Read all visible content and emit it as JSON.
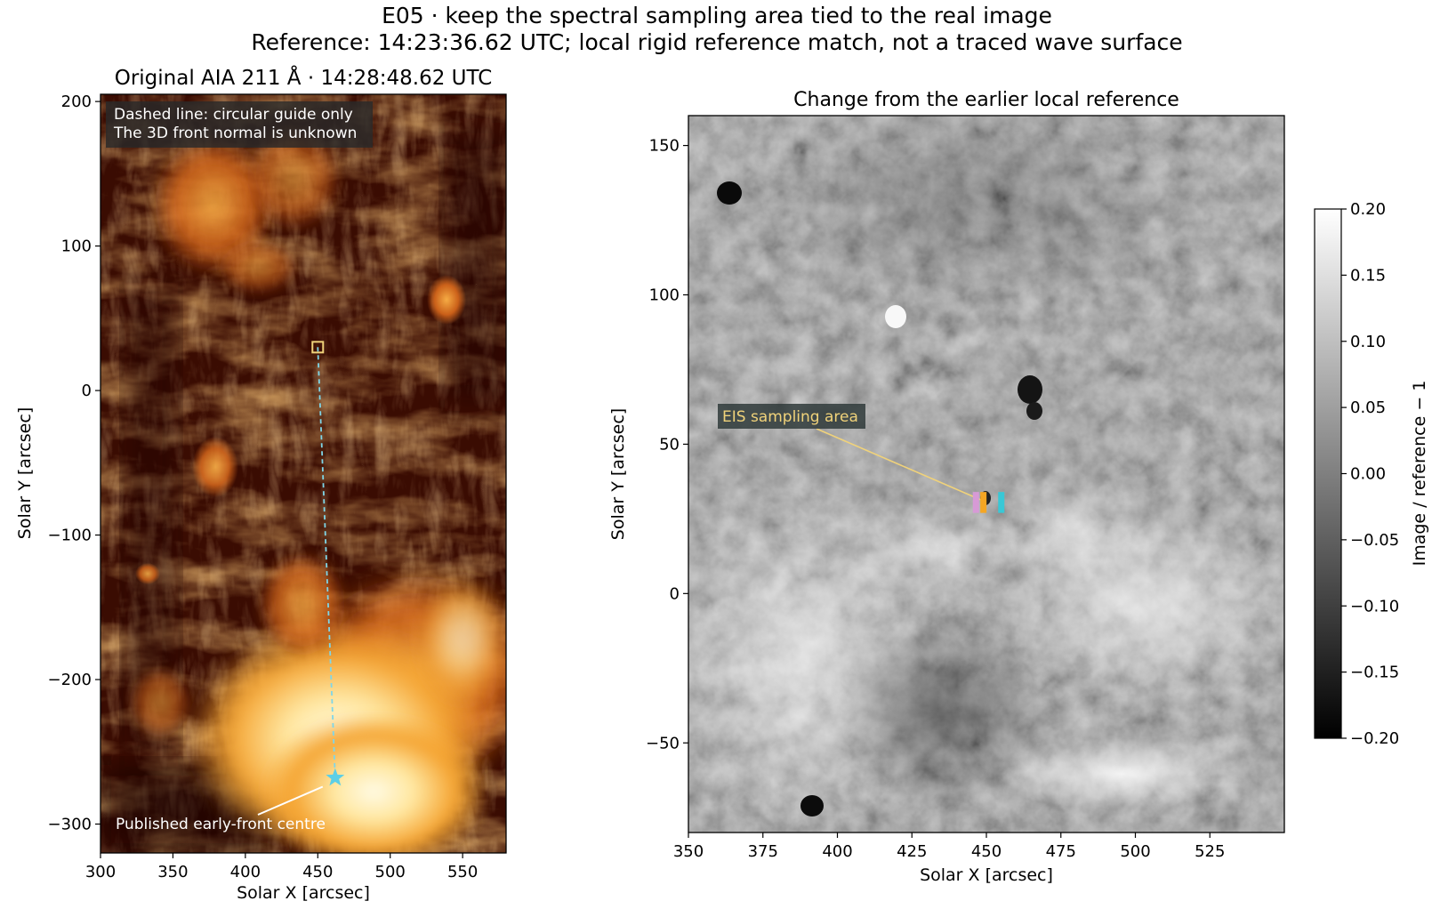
{
  "figure": {
    "title_line1": "E05 · keep the spectral sampling area tied to the real image",
    "title_line2": "Reference: 14:23:36.62 UTC; local rigid reference match, not a traced wave surface"
  },
  "colors": {
    "guide_line": "#7fd6e8",
    "marker": "#5ccfe6",
    "box": "#f0d27a",
    "eis_label_text": "#f0d27a",
    "slit_pink": "#d79ad6",
    "slit_orange": "#f5a623",
    "slit_cyan": "#39c8d6"
  },
  "chart_data": [
    {
      "type": "heatmap",
      "title": "Original AIA 211 Å · 14:28:48.62 UTC",
      "xlabel": "Solar X [arcsec]",
      "ylabel": "Solar Y [arcsec]",
      "xlim": [
        300,
        580
      ],
      "ylim": [
        -320,
        205
      ],
      "xticks": [
        300,
        350,
        400,
        450,
        500,
        550
      ],
      "yticks": [
        200,
        100,
        0,
        -100,
        -200,
        -300
      ],
      "xtick_labels": [
        "300",
        "350",
        "400",
        "450",
        "500",
        "550"
      ],
      "ytick_labels": [
        "200",
        "100",
        "0",
        "−100",
        "−200",
        "−300"
      ],
      "colormap": "sdoaia211 (dark red → orange → white)",
      "info_box": {
        "line1": "Dashed line: circular guide only",
        "line2": "The 3D front normal is unknown"
      },
      "annotation": {
        "text": "Published early-front centre",
        "point": [
          462,
          -268
        ]
      },
      "sampling_box_center": [
        450,
        30
      ],
      "guide_line": {
        "from": [
          450,
          30
        ],
        "to": [
          462,
          -268
        ]
      },
      "early_front_centre": [
        462,
        -268
      ]
    },
    {
      "type": "heatmap",
      "title": "Change from the earlier local reference",
      "xlabel": "Solar X [arcsec]",
      "ylabel": "Solar Y [arcsec]",
      "xlim": [
        350,
        550
      ],
      "ylim": [
        -80,
        160
      ],
      "xticks": [
        350,
        375,
        400,
        425,
        450,
        475,
        500,
        525
      ],
      "yticks": [
        150,
        100,
        50,
        0,
        -50
      ],
      "xtick_labels": [
        "350",
        "375",
        "400",
        "425",
        "450",
        "475",
        "500",
        "525"
      ],
      "ytick_labels": [
        "150",
        "100",
        "50",
        "0",
        "−50"
      ],
      "colormap": "gray",
      "annotation": {
        "text": "EIS sampling area",
        "point": [
          449,
          31
        ]
      },
      "eis_slits": [
        {
          "x": 446.5,
          "ymin": 27,
          "ymax": 34,
          "color": "pink"
        },
        {
          "x": 449,
          "ymin": 27,
          "ymax": 34,
          "color": "orange"
        },
        {
          "x": 455,
          "ymin": 27,
          "ymax": 34,
          "color": "cyan"
        }
      ],
      "colorbar": {
        "label": "Image / reference − 1",
        "range": [
          -0.2,
          0.2
        ],
        "ticks": [
          0.2,
          0.15,
          0.1,
          0.05,
          0.0,
          -0.05,
          -0.1,
          -0.15,
          -0.2
        ],
        "tick_labels": [
          "0.20",
          "0.15",
          "0.10",
          "0.05",
          "0.00",
          "−0.05",
          "−0.10",
          "−0.15",
          "−0.20"
        ]
      }
    }
  ]
}
